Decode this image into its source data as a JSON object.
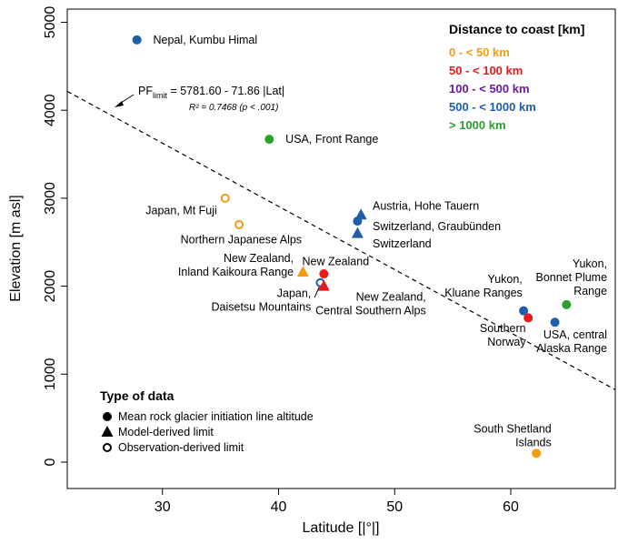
{
  "chart_data": {
    "type": "scatter",
    "xlabel": "Latitude [|°|]",
    "ylabel": "Elevation [m asl]",
    "xlim": [
      21.8,
      69.0
    ],
    "ylim": [
      -300,
      5150
    ],
    "xticks": [
      "30",
      "40",
      "50",
      "60"
    ],
    "xtick_values": [
      30,
      40,
      50,
      60
    ],
    "yticks": [
      "0",
      "1000",
      "2000",
      "3000",
      "4000",
      "5000"
    ],
    "ytick_values": [
      0,
      1000,
      2000,
      3000,
      4000,
      5000
    ],
    "regression": {
      "intercept": 5781.6,
      "slope": -71.86,
      "equation_prefix": "PF",
      "equation_subscript": "limit",
      "equation_body": " = 5781.60 - 71.86 |Lat|",
      "r2_label": "R² = 0.7468  (p < .001)"
    },
    "color_legend": {
      "title": "Distance to coast [km]",
      "entries": [
        {
          "label": "0 - < 50 km",
          "color": "#f39c12"
        },
        {
          "label": "50 - < 100 km",
          "color": "#e8191c"
        },
        {
          "label": "100 - < 500 km",
          "color": "#6a1b9a"
        },
        {
          "label": "500 - < 1000 km",
          "color": "#1f5ea8"
        },
        {
          "label": "> 1000 km",
          "color": "#2ca02c"
        }
      ]
    },
    "type_legend": {
      "title": "Type of data",
      "entries": [
        {
          "label": "Mean rock glacier initiation line altitude",
          "marker": "circle"
        },
        {
          "label": "Model-derived limit",
          "marker": "triangle"
        },
        {
          "label": "Observation-derived limit",
          "marker": "open-circle"
        }
      ]
    },
    "points": [
      {
        "x": 27.8,
        "y": 4800,
        "marker": "circle",
        "color": "#1f5ea8"
      },
      {
        "x": 39.2,
        "y": 3670,
        "marker": "circle",
        "color": "#2ca02c"
      },
      {
        "x": 35.4,
        "y": 3000,
        "marker": "open-circle",
        "color": "#f39c12"
      },
      {
        "x": 36.6,
        "y": 2700,
        "marker": "open-circle",
        "color": "#f39c12"
      },
      {
        "x": 47.1,
        "y": 2810,
        "marker": "triangle",
        "color": "#1f5ea8"
      },
      {
        "x": 46.8,
        "y": 2740,
        "marker": "circle",
        "color": "#1f5ea8"
      },
      {
        "x": 46.8,
        "y": 2600,
        "marker": "triangle",
        "color": "#1f5ea8"
      },
      {
        "x": 42.1,
        "y": 2160,
        "marker": "triangle",
        "color": "#f39c12"
      },
      {
        "x": 43.9,
        "y": 2140,
        "marker": "circle",
        "color": "#e8191c"
      },
      {
        "x": 43.6,
        "y": 2040,
        "marker": "open-circle",
        "color": "#1f5ea8"
      },
      {
        "x": 43.9,
        "y": 2000,
        "marker": "triangle",
        "color": "#e8191c"
      },
      {
        "x": 61.1,
        "y": 1720,
        "marker": "circle",
        "color": "#1f5ea8"
      },
      {
        "x": 61.5,
        "y": 1640,
        "marker": "circle",
        "color": "#e8191c"
      },
      {
        "x": 64.8,
        "y": 1790,
        "marker": "circle",
        "color": "#2ca02c"
      },
      {
        "x": 63.8,
        "y": 1590,
        "marker": "circle",
        "color": "#1f5ea8"
      },
      {
        "x": 62.2,
        "y": 100,
        "marker": "circle",
        "color": "#f39c12"
      }
    ],
    "labels": [
      {
        "lines": [
          "Nepal, Kumbu Himal"
        ],
        "x": 29.2,
        "y": 4800,
        "anchor": "start"
      },
      {
        "lines": [
          "USA, Front Range"
        ],
        "x": 40.6,
        "y": 3670,
        "anchor": "start"
      },
      {
        "lines": [
          "Japan, Mt Fuji"
        ],
        "x": 34.7,
        "y": 2860,
        "anchor": "end"
      },
      {
        "lines": [
          "Northern Japanese Alps"
        ],
        "x": 42.0,
        "y": 2530,
        "anchor": "end"
      },
      {
        "lines": [
          "Austria, Hohe Tauern"
        ],
        "x": 48.1,
        "y": 2910,
        "anchor": "start"
      },
      {
        "lines": [
          "Switzerland, Graubünden"
        ],
        "x": 48.1,
        "y": 2680,
        "anchor": "start"
      },
      {
        "lines": [
          "Switzerland"
        ],
        "x": 48.1,
        "y": 2480,
        "anchor": "start"
      },
      {
        "lines": [
          "New Zealand"
        ],
        "x": 47.8,
        "y": 2280,
        "anchor": "end"
      },
      {
        "lines": [
          "New Zealand,",
          "Inland Kaikoura Range"
        ],
        "x": 41.3,
        "y": 2240,
        "anchor": "end"
      },
      {
        "lines": [
          "Japan,",
          "Daisetsu Mountains"
        ],
        "x": 42.8,
        "y": 1840,
        "anchor": "end"
      },
      {
        "lines": [
          "New Zealand,",
          "Central Southern Alps"
        ],
        "x": 52.7,
        "y": 1800,
        "anchor": "end"
      },
      {
        "lines": [
          "Yukon,",
          "Kluane Ranges"
        ],
        "x": 61.0,
        "y": 2000,
        "anchor": "end"
      },
      {
        "lines": [
          "Yukon,",
          "Bonnet Plume",
          "Range"
        ],
        "x": 68.3,
        "y": 2100,
        "anchor": "end"
      },
      {
        "lines": [
          "Southern",
          "Norway"
        ],
        "x": 61.3,
        "y": 1440,
        "anchor": "end"
      },
      {
        "lines": [
          "USA, central",
          "Alaska Range"
        ],
        "x": 68.3,
        "y": 1370,
        "anchor": "end"
      },
      {
        "lines": [
          "South Shetland",
          "Islands"
        ],
        "x": 63.5,
        "y": 300,
        "anchor": "end"
      }
    ]
  }
}
